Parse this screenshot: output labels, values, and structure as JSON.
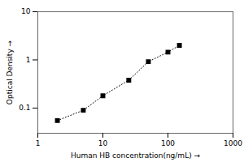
{
  "chart_data": {
    "type": "line",
    "x": [
      2,
      5,
      10,
      25,
      50,
      100,
      150
    ],
    "values": [
      0.055,
      0.09,
      0.18,
      0.38,
      0.92,
      1.45,
      2.0
    ],
    "color": "black",
    "marker": "square",
    "line_style": "dotted",
    "xlabel": "Human HB concentration(ng/mL)",
    "ylabel": "Optical Density",
    "log": true,
    "xlim": [
      1,
      1000
    ],
    "ylim": [
      0.03,
      10
    ],
    "xticks": [
      1,
      10,
      100,
      1000
    ],
    "yticks": [
      0.1,
      1,
      10
    ]
  }
}
